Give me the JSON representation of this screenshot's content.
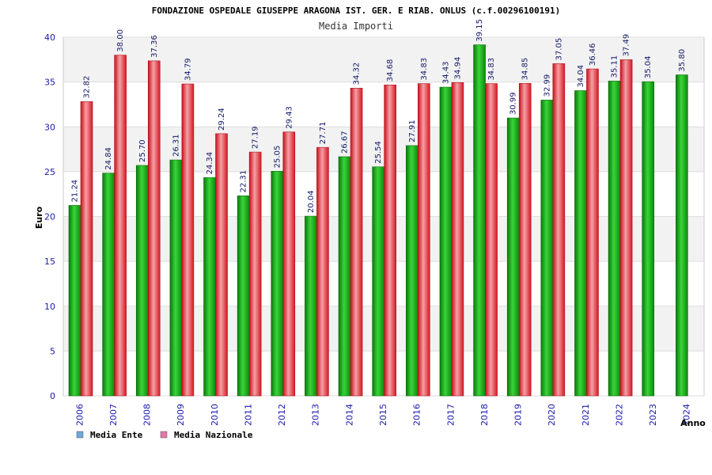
{
  "chart_data": {
    "type": "bar",
    "title": "FONDAZIONE OSPEDALE GIUSEPPE ARAGONA IST. GER. E RIAB. ONLUS (c.f.00296100191)",
    "subtitle": "Media Importi",
    "xlabel": "Anno",
    "ylabel": "Euro",
    "ylim": [
      0,
      40
    ],
    "yticks": [
      0,
      5,
      10,
      15,
      20,
      25,
      30,
      35,
      40
    ],
    "grid": true,
    "legend_position": "bottom-left",
    "categories": [
      "2006",
      "2007",
      "2008",
      "2009",
      "2010",
      "2011",
      "2012",
      "2013",
      "2014",
      "2015",
      "2016",
      "2017",
      "2018",
      "2019",
      "2020",
      "2021",
      "2022",
      "2023",
      "2024"
    ],
    "series": [
      {
        "name": "Media Ente",
        "legend_color": "#6fa8dc",
        "bar_color": "#1fb31f",
        "values": [
          21.24,
          24.84,
          25.7,
          26.31,
          24.34,
          22.31,
          25.05,
          20.04,
          26.67,
          25.54,
          27.91,
          34.43,
          39.15,
          30.99,
          32.99,
          34.04,
          35.11,
          35.04,
          35.8
        ],
        "labels": [
          "21.24",
          "24.84",
          "25.70",
          "26.31",
          "24.34",
          "22.31",
          "25.05",
          "20.04",
          "26.67",
          "25.54",
          "27.91",
          "34.43",
          "39.15",
          "30.99",
          "32.99",
          "34.04",
          "35.11",
          "35.04",
          "35.80"
        ]
      },
      {
        "name": "Media Nazionale",
        "legend_color": "#e07aa6",
        "bar_color": "#e8202a",
        "values": [
          32.82,
          38.0,
          37.36,
          34.79,
          29.24,
          27.19,
          29.43,
          27.71,
          34.32,
          34.68,
          34.83,
          34.94,
          34.83,
          34.85,
          37.05,
          36.46,
          37.49,
          null,
          null
        ],
        "labels": [
          "32.82",
          "38.00",
          "37.36",
          "34.79",
          "29.24",
          "27.19",
          "29.43",
          "27.71",
          "34.32",
          "34.68",
          "34.83",
          "34.94",
          "34.83",
          "34.85",
          "37.05",
          "36.46",
          "37.49",
          null,
          null
        ]
      }
    ]
  }
}
